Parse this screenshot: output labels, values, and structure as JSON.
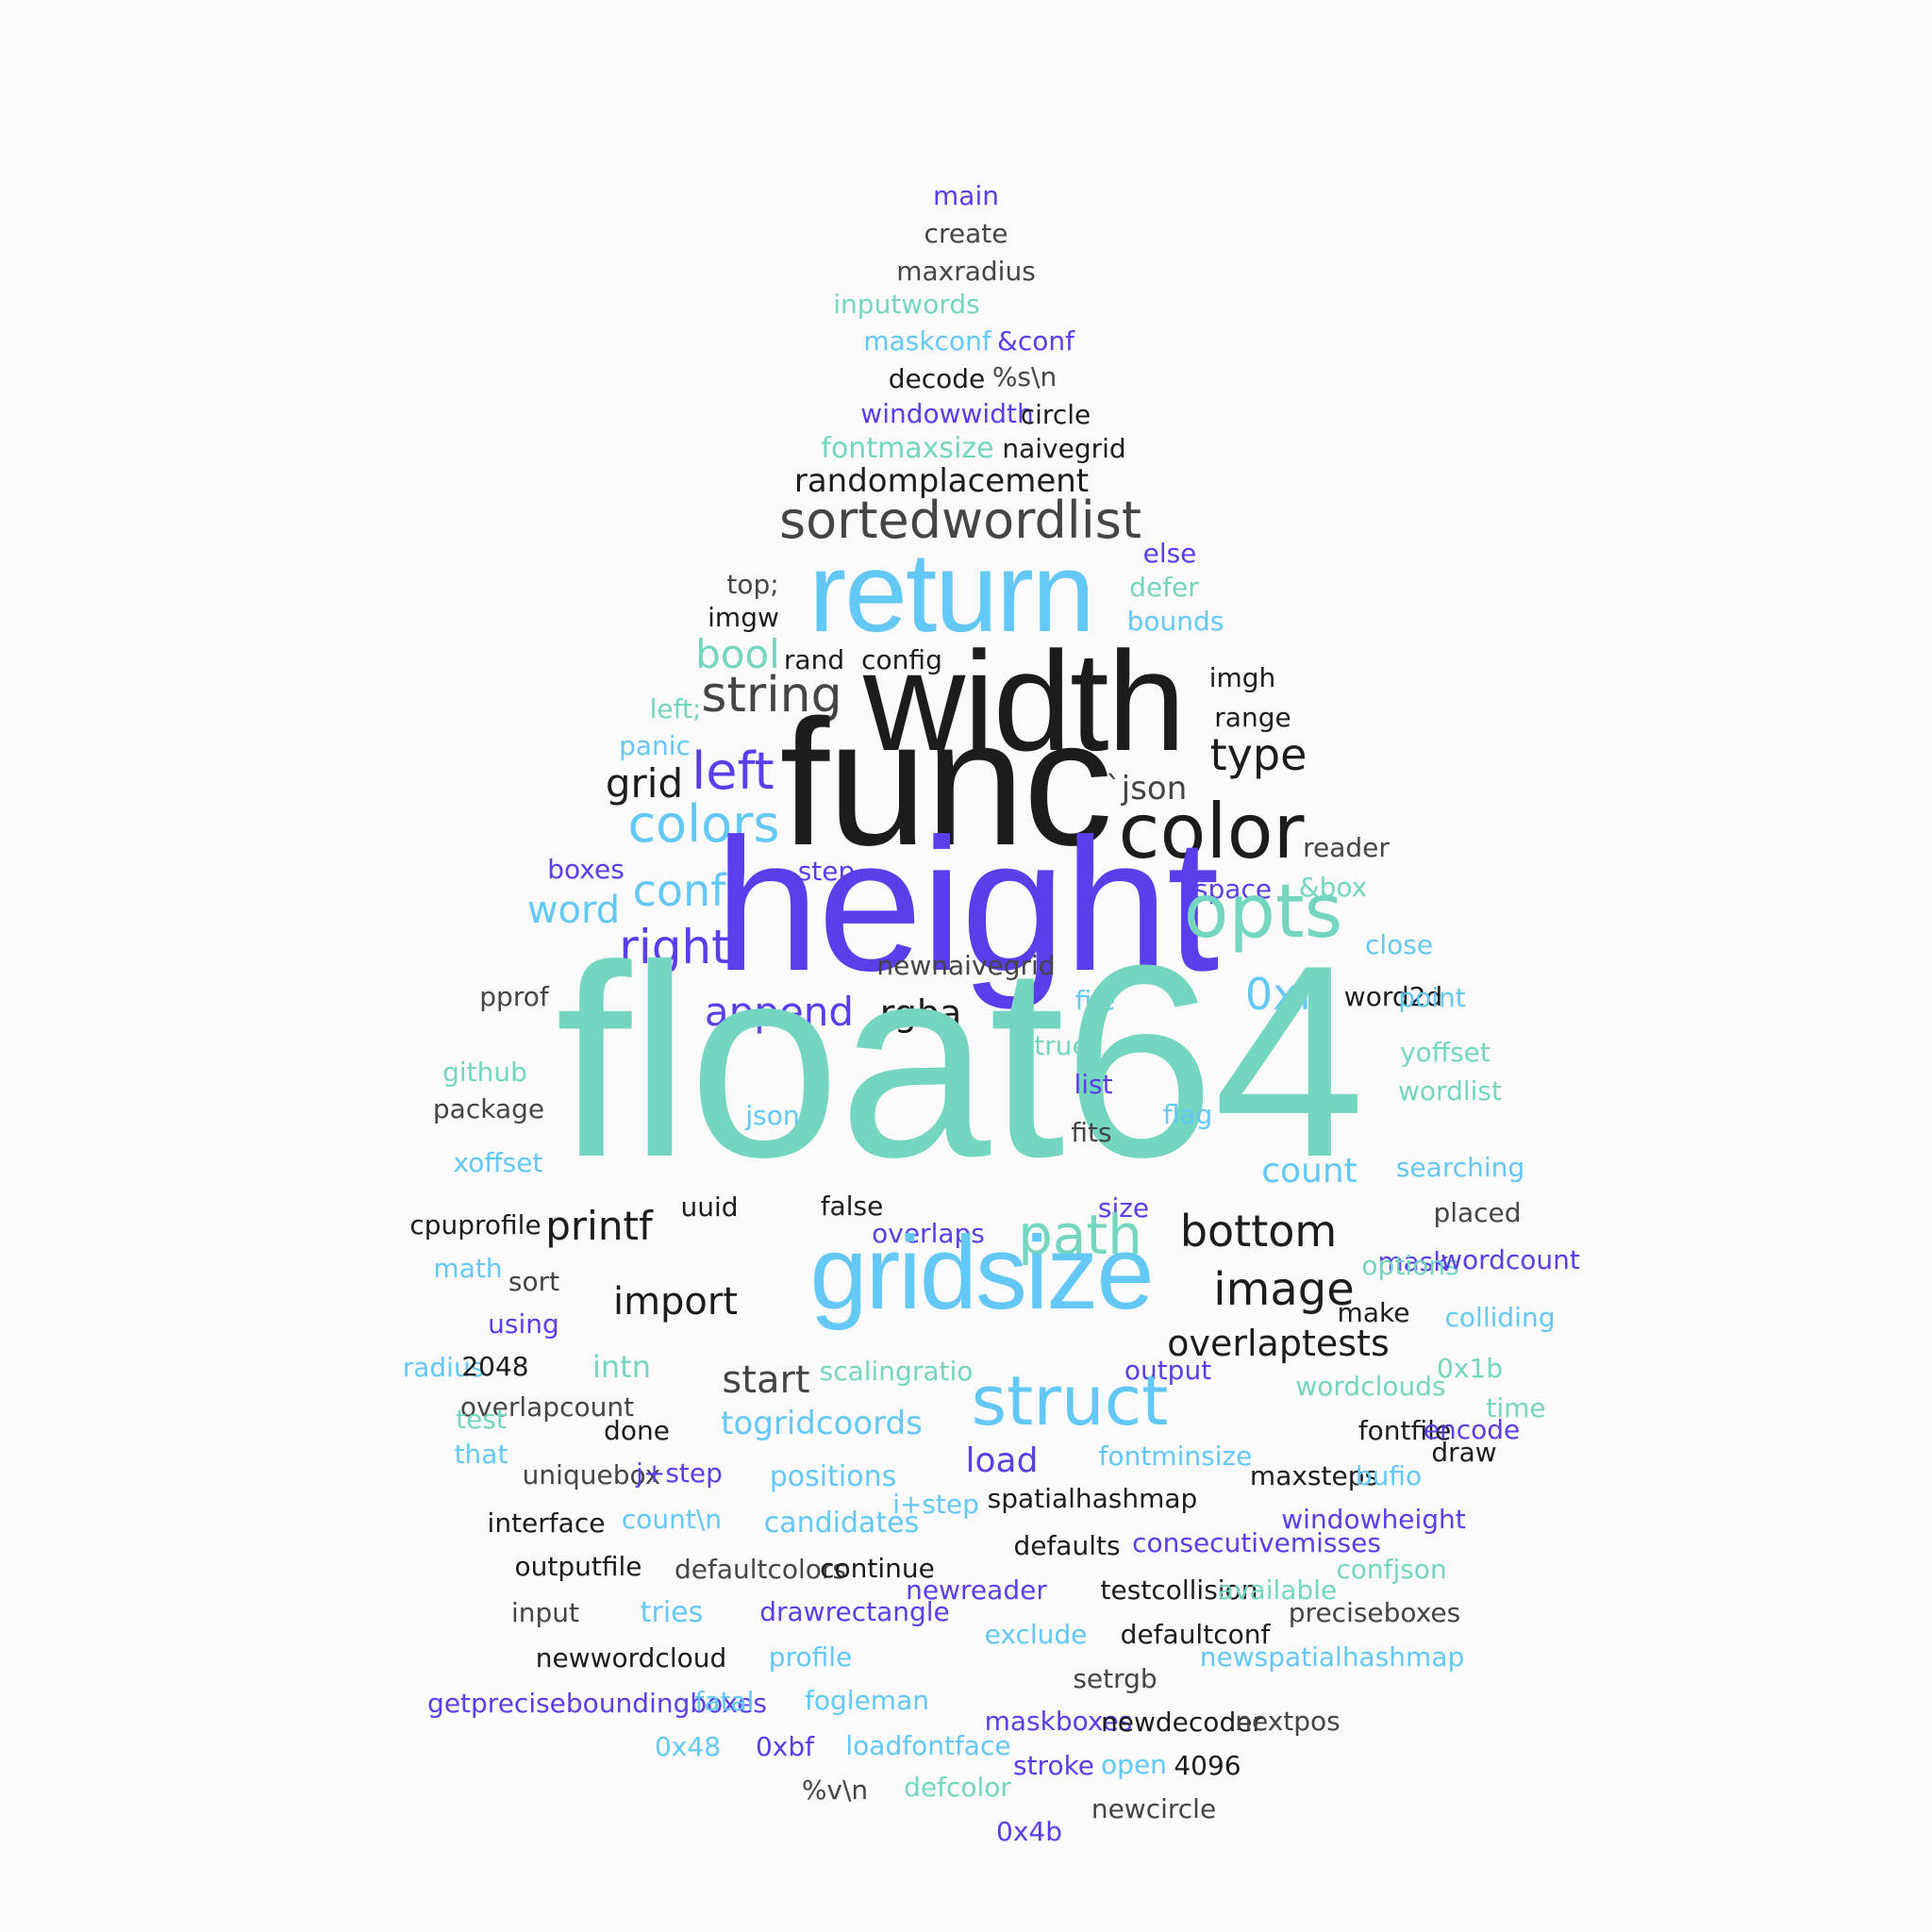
{
  "palette": {
    "teal": "#75d6c0",
    "sky": "#63c8f5",
    "purple": "#5a3eea",
    "black": "#1c1c1c",
    "gray": "#454545",
    "background": "#fafafa"
  },
  "words": [
    {
      "text": "main",
      "weight": 1,
      "color": "purp"
    },
    {
      "text": "create",
      "weight": 1,
      "color": "gray"
    },
    {
      "text": "maxradius",
      "weight": 1,
      "color": "gray"
    },
    {
      "text": "inputwords",
      "weight": 1,
      "color": "teal"
    },
    {
      "text": "maskconf",
      "weight": 1,
      "color": "sky"
    },
    {
      "text": "&conf",
      "weight": 1,
      "color": "purp"
    },
    {
      "text": "decode",
      "weight": 1,
      "color": "black"
    },
    {
      "text": "%s\\n",
      "weight": 1,
      "color": "gray"
    },
    {
      "text": "windowwidth",
      "weight": 1,
      "color": "purp"
    },
    {
      "text": "circle",
      "weight": 1,
      "color": "black"
    },
    {
      "text": "fontmaxsize",
      "weight": 1.2,
      "color": "teal"
    },
    {
      "text": "naivegrid",
      "weight": 1,
      "color": "black"
    },
    {
      "text": "randomplacement",
      "weight": 1.3,
      "color": "black"
    },
    {
      "text": "sortedwordlist",
      "weight": 2,
      "color": "gray"
    },
    {
      "text": "return",
      "weight": 4,
      "color": "sky"
    },
    {
      "text": "else",
      "weight": 1,
      "color": "purp"
    },
    {
      "text": "top;",
      "weight": 1,
      "color": "gray"
    },
    {
      "text": "defer",
      "weight": 1,
      "color": "teal"
    },
    {
      "text": "imgw",
      "weight": 1,
      "color": "black"
    },
    {
      "text": "bounds",
      "weight": 1,
      "color": "sky"
    },
    {
      "text": "bool",
      "weight": 1.5,
      "color": "teal"
    },
    {
      "text": "rand",
      "weight": 1,
      "color": "black"
    },
    {
      "text": "config",
      "weight": 1,
      "color": "black"
    },
    {
      "text": "width",
      "weight": 5,
      "color": "black"
    },
    {
      "text": "string",
      "weight": 2,
      "color": "gray"
    },
    {
      "text": "imgh",
      "weight": 1,
      "color": "black"
    },
    {
      "text": "left;",
      "weight": 1,
      "color": "teal"
    },
    {
      "text": "range",
      "weight": 1,
      "color": "black"
    },
    {
      "text": "panic",
      "weight": 1,
      "color": "sky"
    },
    {
      "text": "type",
      "weight": 1.7,
      "color": "black"
    },
    {
      "text": "func",
      "weight": 6,
      "color": "black"
    },
    {
      "text": "left",
      "weight": 2,
      "color": "purp"
    },
    {
      "text": "grid",
      "weight": 1.6,
      "color": "black"
    },
    {
      "text": "`json",
      "weight": 1.3,
      "color": "gray"
    },
    {
      "text": "colors",
      "weight": 2,
      "color": "sky"
    },
    {
      "text": "color",
      "weight": 3,
      "color": "black"
    },
    {
      "text": "reader",
      "weight": 1,
      "color": "gray"
    },
    {
      "text": "boxes",
      "weight": 1,
      "color": "purp"
    },
    {
      "text": "step",
      "weight": 1,
      "color": "purp"
    },
    {
      "text": "space",
      "weight": 1,
      "color": "purp"
    },
    {
      "text": "&box",
      "weight": 1,
      "color": "teal"
    },
    {
      "text": "conf",
      "weight": 2,
      "color": "sky"
    },
    {
      "text": "word",
      "weight": 1.6,
      "color": "sky"
    },
    {
      "text": "height",
      "weight": 6,
      "color": "purp"
    },
    {
      "text": "opts",
      "weight": 2.5,
      "color": "teal"
    },
    {
      "text": "right",
      "weight": 2,
      "color": "purp"
    },
    {
      "text": "close",
      "weight": 1,
      "color": "sky"
    },
    {
      "text": "word2d",
      "weight": 1,
      "color": "black"
    },
    {
      "text": "pprof",
      "weight": 1,
      "color": "gray"
    },
    {
      "text": "append",
      "weight": 1.6,
      "color": "purp"
    },
    {
      "text": "rgba",
      "weight": 1.4,
      "color": "black"
    },
    {
      "text": "0xff",
      "weight": 1.6,
      "color": "sky"
    },
    {
      "text": "file",
      "weight": 1,
      "color": "sky"
    },
    {
      "text": "point",
      "weight": 1,
      "color": "sky"
    },
    {
      "text": "float64",
      "weight": 10,
      "color": "teal"
    },
    {
      "text": "true",
      "weight": 1,
      "color": "teal"
    },
    {
      "text": "github",
      "weight": 1,
      "color": "teal"
    },
    {
      "text": "yoffset",
      "weight": 1,
      "color": "teal"
    },
    {
      "text": "list",
      "weight": 1,
      "color": "purp"
    },
    {
      "text": "wordlist",
      "weight": 1,
      "color": "teal"
    },
    {
      "text": "package",
      "weight": 1,
      "color": "gray"
    },
    {
      "text": "json",
      "weight": 1,
      "color": "sky"
    },
    {
      "text": "flag",
      "weight": 1,
      "color": "sky"
    },
    {
      "text": "fits",
      "weight": 1,
      "color": "gray"
    },
    {
      "text": "xoffset",
      "weight": 1,
      "color": "sky"
    },
    {
      "text": "count",
      "weight": 1.3,
      "color": "sky"
    },
    {
      "text": "searching",
      "weight": 1,
      "color": "sky"
    },
    {
      "text": "uuid",
      "weight": 1,
      "color": "black"
    },
    {
      "text": "false",
      "weight": 1,
      "color": "black"
    },
    {
      "text": "size",
      "weight": 1,
      "color": "purp"
    },
    {
      "text": "placed",
      "weight": 1,
      "color": "gray"
    },
    {
      "text": "cpuprofile",
      "weight": 1,
      "color": "black"
    },
    {
      "text": "printf",
      "weight": 1.6,
      "color": "black"
    },
    {
      "text": "overlaps",
      "weight": 2.2,
      "color": "purp"
    },
    {
      "text": "path",
      "weight": 1,
      "color": "teal"
    },
    {
      "text": "bottom",
      "weight": 2.3,
      "color": "black"
    },
    {
      "text": "mask",
      "weight": 2,
      "color": "purp"
    },
    {
      "text": "math",
      "weight": 1.7,
      "color": "sky"
    },
    {
      "text": "gridsize",
      "weight": 1,
      "color": "sky"
    },
    {
      "text": "options",
      "weight": 4.5,
      "color": "teal"
    },
    {
      "text": "wordcount",
      "weight": 1,
      "color": "purp"
    },
    {
      "text": "sort",
      "weight": 1,
      "color": "gray"
    },
    {
      "text": "import",
      "weight": 1,
      "color": "black"
    },
    {
      "text": "image",
      "weight": 1.8,
      "color": "black"
    },
    {
      "text": "make",
      "weight": 1.9,
      "color": "black"
    },
    {
      "text": "colliding",
      "weight": 1,
      "color": "sky"
    },
    {
      "text": "using",
      "weight": 1,
      "color": "purp"
    },
    {
      "text": "overlaptests",
      "weight": 1,
      "color": "black"
    },
    {
      "text": "radius",
      "weight": 1.5,
      "color": "sky"
    },
    {
      "text": "2048",
      "weight": 1,
      "color": "black"
    },
    {
      "text": "intn",
      "weight": 1,
      "color": "teal"
    },
    {
      "text": "scalingratio",
      "weight": 1.3,
      "color": "teal"
    },
    {
      "text": "output",
      "weight": 1,
      "color": "purp"
    },
    {
      "text": "0x1b",
      "weight": 1,
      "color": "teal"
    },
    {
      "text": "start",
      "weight": 1,
      "color": "gray"
    },
    {
      "text": "struct",
      "weight": 1.7,
      "color": "sky"
    },
    {
      "text": "wordclouds",
      "weight": 3,
      "color": "teal"
    },
    {
      "text": "overlapcount",
      "weight": 1,
      "color": "gray"
    },
    {
      "text": "time",
      "weight": 1,
      "color": "teal"
    },
    {
      "text": "test",
      "weight": 1,
      "color": "teal"
    },
    {
      "text": "done",
      "weight": 1,
      "color": "black"
    },
    {
      "text": "togridcoords",
      "weight": 1,
      "color": "sky"
    },
    {
      "text": "fontfile",
      "weight": 1.4,
      "color": "black"
    },
    {
      "text": "encode",
      "weight": 1,
      "color": "purp"
    },
    {
      "text": "that",
      "weight": 1,
      "color": "sky"
    },
    {
      "text": "draw",
      "weight": 1,
      "color": "black"
    },
    {
      "text": "load",
      "weight": 1,
      "color": "purp"
    },
    {
      "text": "fontminsize",
      "weight": 1.5,
      "color": "sky"
    },
    {
      "text": "uniquebox",
      "weight": 1,
      "color": "gray"
    },
    {
      "text": "j+step",
      "weight": 1,
      "color": "purp"
    },
    {
      "text": "positions",
      "weight": 1,
      "color": "sky"
    },
    {
      "text": "maxsteps",
      "weight": 1.2,
      "color": "black"
    },
    {
      "text": "bufio",
      "weight": 1,
      "color": "sky"
    },
    {
      "text": "i+step",
      "weight": 1,
      "color": "sky"
    },
    {
      "text": "spatialhashmap",
      "weight": 1,
      "color": "black"
    },
    {
      "text": "interface",
      "weight": 1,
      "color": "black"
    },
    {
      "text": "count\\n",
      "weight": 1,
      "color": "sky"
    },
    {
      "text": "candidates",
      "weight": 1,
      "color": "sky"
    },
    {
      "text": "windowheight",
      "weight": 1.1,
      "color": "purp"
    },
    {
      "text": "defaults",
      "weight": 1,
      "color": "black"
    },
    {
      "text": "consecutivemisses",
      "weight": 1,
      "color": "purp"
    },
    {
      "text": "outputfile",
      "weight": 1,
      "color": "black"
    },
    {
      "text": "defaultcolors",
      "weight": 1,
      "color": "gray"
    },
    {
      "text": "continue",
      "weight": 1,
      "color": "black"
    },
    {
      "text": "confjson",
      "weight": 1,
      "color": "teal"
    },
    {
      "text": "newreader",
      "weight": 1,
      "color": "purp"
    },
    {
      "text": "testcollision",
      "weight": 1,
      "color": "black"
    },
    {
      "text": "available",
      "weight": 1,
      "color": "teal"
    },
    {
      "text": "input",
      "weight": 1,
      "color": "gray"
    },
    {
      "text": "tries",
      "weight": 1,
      "color": "sky"
    },
    {
      "text": "drawrectangle",
      "weight": 1.1,
      "color": "purp"
    },
    {
      "text": "preciseboxes",
      "weight": 1,
      "color": "gray"
    },
    {
      "text": "exclude",
      "weight": 1,
      "color": "sky"
    },
    {
      "text": "defaultconf",
      "weight": 1,
      "color": "black"
    },
    {
      "text": "newwordcloud",
      "weight": 1,
      "color": "black"
    },
    {
      "text": "profile",
      "weight": 1,
      "color": "sky"
    },
    {
      "text": "newspatialhashmap",
      "weight": 1,
      "color": "sky"
    },
    {
      "text": "setrgb",
      "weight": 1,
      "color": "gray"
    },
    {
      "text": "getpreciseboundingboxes",
      "weight": 1,
      "color": "purp"
    },
    {
      "text": "fatal",
      "weight": 1,
      "color": "sky"
    },
    {
      "text": "fogleman",
      "weight": 1,
      "color": "sky"
    },
    {
      "text": "maskboxes",
      "weight": 1,
      "color": "purp"
    },
    {
      "text": "newdecoder",
      "weight": 1,
      "color": "black"
    },
    {
      "text": "nextpos",
      "weight": 1,
      "color": "gray"
    },
    {
      "text": "0x48",
      "weight": 1,
      "color": "sky"
    },
    {
      "text": "0xbf",
      "weight": 1,
      "color": "purp"
    },
    {
      "text": "loadfontface",
      "weight": 1,
      "color": "sky"
    },
    {
      "text": "stroke",
      "weight": 1,
      "color": "purp"
    },
    {
      "text": "open",
      "weight": 1,
      "color": "sky"
    },
    {
      "text": "4096",
      "weight": 1,
      "color": "black"
    },
    {
      "text": "%v\\n",
      "weight": 1,
      "color": "gray"
    },
    {
      "text": "defcolor",
      "weight": 1,
      "color": "teal"
    },
    {
      "text": "newcircle",
      "weight": 1,
      "color": "gray"
    },
    {
      "text": "0x4b",
      "weight": 1,
      "color": "purp"
    },
    {
      "text": "newnaivegrid",
      "weight": 1,
      "color": "gray"
    }
  ]
}
